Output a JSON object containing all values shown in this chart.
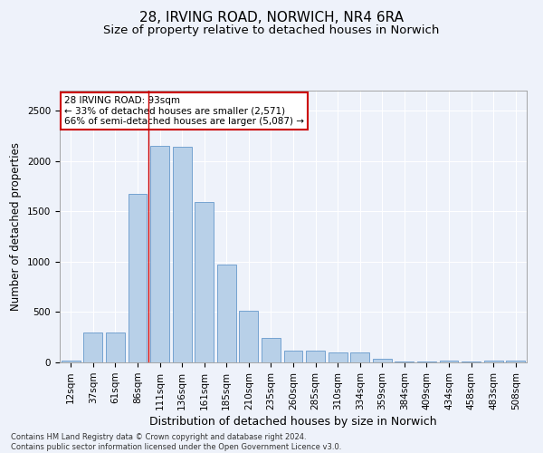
{
  "title": "28, IRVING ROAD, NORWICH, NR4 6RA",
  "subtitle": "Size of property relative to detached houses in Norwich",
  "xlabel": "Distribution of detached houses by size in Norwich",
  "ylabel": "Number of detached properties",
  "categories": [
    "12sqm",
    "37sqm",
    "61sqm",
    "86sqm",
    "111sqm",
    "136sqm",
    "161sqm",
    "185sqm",
    "210sqm",
    "235sqm",
    "260sqm",
    "285sqm",
    "310sqm",
    "334sqm",
    "359sqm",
    "384sqm",
    "409sqm",
    "434sqm",
    "458sqm",
    "483sqm",
    "508sqm"
  ],
  "values": [
    20,
    295,
    295,
    1675,
    2150,
    2140,
    1590,
    970,
    510,
    245,
    120,
    115,
    95,
    95,
    40,
    10,
    5,
    20,
    5,
    20,
    20
  ],
  "bar_color": "#b8d0e8",
  "bar_edge_color": "#6699cc",
  "annotation_text": "28 IRVING ROAD: 93sqm\n← 33% of detached houses are smaller (2,571)\n66% of semi-detached houses are larger (5,087) →",
  "annotation_box_color": "#ffffff",
  "annotation_box_edge_color": "#cc0000",
  "footer_line1": "Contains HM Land Registry data © Crown copyright and database right 2024.",
  "footer_line2": "Contains public sector information licensed under the Open Government Licence v3.0.",
  "ylim": [
    0,
    2700
  ],
  "background_color": "#eef2fa",
  "grid_color": "#ffffff",
  "title_fontsize": 11,
  "subtitle_fontsize": 9.5,
  "tick_fontsize": 7.5,
  "ylabel_fontsize": 8.5,
  "xlabel_fontsize": 9
}
